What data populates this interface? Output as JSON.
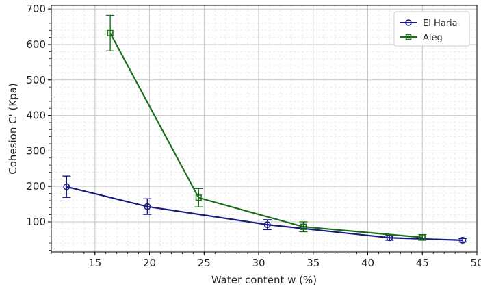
{
  "chart_data": {
    "type": "line",
    "title": "",
    "xlabel": "Water content w (%)",
    "ylabel": "Cohesion C' (Kpa)",
    "xlim": [
      11,
      50
    ],
    "ylim": [
      15,
      710
    ],
    "xticks": [
      15,
      20,
      25,
      30,
      35,
      40,
      45,
      50
    ],
    "yticks": [
      100,
      200,
      300,
      400,
      500,
      600,
      700
    ],
    "grid": true,
    "minor_grid": true,
    "legend_position": "top-right",
    "series": [
      {
        "name": "El Haria",
        "color": "#1a1a80",
        "marker": "circle",
        "x": [
          12.4,
          19.8,
          30.8,
          42.0,
          48.7
        ],
        "y": [
          199,
          143,
          92,
          55,
          48
        ],
        "error": [
          30,
          22,
          14,
          7,
          5
        ]
      },
      {
        "name": "Aleg",
        "color": "#1a6e1a",
        "marker": "square",
        "x": [
          16.4,
          24.5,
          34.1,
          45.0
        ],
        "y": [
          632,
          168,
          86,
          56
        ],
        "error": [
          50,
          26,
          14,
          8
        ]
      }
    ]
  }
}
